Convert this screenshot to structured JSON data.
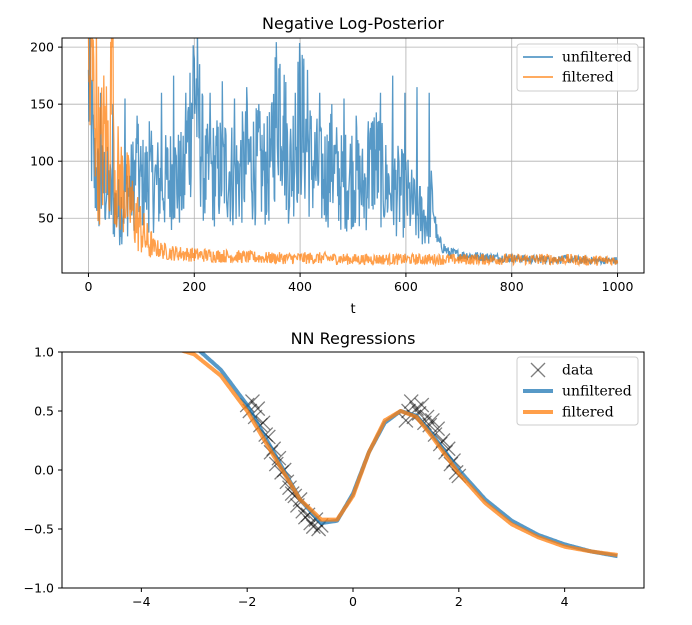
{
  "chart_data": [
    {
      "type": "line",
      "title": "Negative Log-Posterior",
      "xlabel": "t",
      "ylabel": "",
      "xlim": [
        -50,
        1050
      ],
      "ylim": [
        2,
        208
      ],
      "grid": true,
      "xticks": [
        0,
        200,
        400,
        600,
        800,
        1000
      ],
      "xtick_labels": [
        "0",
        "200",
        "400",
        "600",
        "800",
        "1000"
      ],
      "yticks": [
        50,
        100,
        150,
        200
      ],
      "ytick_labels": [
        "50",
        "100",
        "150",
        "200"
      ],
      "legend_position": "top-right",
      "series": [
        {
          "name": "unfiltered",
          "color": "#1f77b4",
          "x": [
            0,
            10,
            20,
            30,
            40,
            50,
            60,
            70,
            80,
            90,
            100,
            120,
            140,
            160,
            180,
            200,
            220,
            240,
            260,
            280,
            300,
            320,
            340,
            360,
            380,
            400,
            420,
            440,
            460,
            480,
            500,
            520,
            540,
            560,
            580,
            600,
            620,
            640,
            650,
            660,
            680,
            700,
            750,
            800,
            850,
            900,
            950,
            1000
          ],
          "values": [
            180,
            95,
            75,
            80,
            70,
            60,
            55,
            70,
            75,
            90,
            80,
            82,
            78,
            88,
            80,
            175,
            85,
            90,
            95,
            85,
            100,
            95,
            90,
            165,
            90,
            140,
            100,
            85,
            95,
            80,
            90,
            75,
            105,
            80,
            75,
            70,
            55,
            50,
            65,
            30,
            20,
            18,
            16,
            15,
            14,
            14,
            13,
            13
          ],
          "peak_values": [
            180,
            160,
            150,
            155,
            140,
            135,
            160,
            175,
            160,
            165,
            160,
            170,
            155,
            165,
            150,
            100,
            140,
            160
          ]
        },
        {
          "name": "filtered",
          "color": "#ff7f0e",
          "x": [
            0,
            10,
            20,
            30,
            40,
            45,
            50,
            60,
            70,
            80,
            90,
            100,
            110,
            120,
            150,
            200,
            250,
            300,
            350,
            400,
            450,
            500,
            550,
            600,
            650,
            700,
            750,
            800,
            850,
            900,
            950,
            1000
          ],
          "values": [
            155,
            190,
            100,
            120,
            110,
            200,
            90,
            80,
            75,
            60,
            50,
            40,
            30,
            25,
            20,
            18,
            17,
            16,
            15,
            15,
            15,
            14,
            14,
            14,
            14,
            14,
            14,
            14,
            14,
            14,
            13,
            13
          ]
        }
      ]
    },
    {
      "type": "line",
      "title": "NN Regressions",
      "xlabel": "",
      "ylabel": "",
      "xlim": [
        -5.5,
        5.5
      ],
      "ylim": [
        -1.0,
        1.0
      ],
      "grid": false,
      "xticks": [
        -4,
        -2,
        0,
        2,
        4
      ],
      "xtick_labels": [
        "−4",
        "−2",
        "0",
        "2",
        "4"
      ],
      "yticks": [
        -1.0,
        -0.5,
        0.0,
        0.5,
        1.0
      ],
      "ytick_labels": [
        "−1.0",
        "−0.5",
        "0.0",
        "0.5",
        "1.0"
      ],
      "legend_position": "top-right",
      "series": [
        {
          "name": "data",
          "style": "x-markers",
          "color": "#000000",
          "x": [
            -2.0,
            -1.95,
            -1.9,
            -1.85,
            -1.8,
            -1.75,
            -1.7,
            -1.65,
            -1.6,
            -1.55,
            -1.5,
            -1.45,
            -1.4,
            -1.35,
            -1.3,
            -1.25,
            -1.2,
            -1.15,
            -1.1,
            -1.05,
            -1.0,
            -0.95,
            -0.9,
            -0.85,
            -0.8,
            -0.75,
            -0.7,
            -0.65,
            -0.6,
            1.0,
            1.05,
            1.1,
            1.15,
            1.2,
            1.25,
            1.3,
            1.35,
            1.4,
            1.45,
            1.5,
            1.55,
            1.6,
            1.65,
            1.7,
            1.75,
            1.8,
            1.85,
            1.9,
            1.95,
            2.0
          ],
          "values": [
            0.55,
            0.5,
            0.58,
            0.45,
            0.52,
            0.38,
            0.4,
            0.3,
            0.28,
            0.15,
            0.18,
            0.05,
            0.1,
            -0.02,
            0.0,
            -0.1,
            -0.15,
            -0.2,
            -0.22,
            -0.3,
            -0.25,
            -0.35,
            -0.4,
            -0.38,
            -0.45,
            -0.48,
            -0.42,
            -0.5,
            -0.47,
            0.42,
            0.5,
            0.58,
            0.45,
            0.52,
            0.48,
            0.55,
            0.4,
            0.45,
            0.38,
            0.42,
            0.3,
            0.35,
            0.22,
            0.25,
            0.15,
            0.18,
            0.05,
            0.08,
            -0.02,
            -0.05
          ]
        },
        {
          "name": "unfiltered",
          "color": "#1f77b4",
          "x": [
            -3.0,
            -2.5,
            -2.0,
            -1.5,
            -1.0,
            -0.6,
            -0.3,
            0.0,
            0.3,
            0.6,
            0.9,
            1.2,
            1.5,
            2.0,
            2.5,
            3.0,
            3.5,
            4.0,
            4.5,
            5.0
          ],
          "values": [
            1.05,
            0.85,
            0.55,
            0.15,
            -0.25,
            -0.45,
            -0.43,
            -0.2,
            0.15,
            0.4,
            0.5,
            0.46,
            0.3,
            0.0,
            -0.25,
            -0.43,
            -0.55,
            -0.63,
            -0.69,
            -0.73
          ]
        },
        {
          "name": "filtered",
          "color": "#ff7f0e",
          "x": [
            -3.5,
            -3.0,
            -2.5,
            -2.0,
            -1.5,
            -1.0,
            -0.6,
            -0.3,
            0.0,
            0.3,
            0.6,
            0.9,
            1.2,
            1.5,
            2.0,
            2.5,
            3.0,
            3.5,
            4.0,
            4.5,
            5.0
          ],
          "values": [
            1.05,
            0.98,
            0.8,
            0.5,
            0.12,
            -0.25,
            -0.42,
            -0.42,
            -0.22,
            0.15,
            0.42,
            0.5,
            0.45,
            0.28,
            -0.03,
            -0.28,
            -0.46,
            -0.57,
            -0.65,
            -0.69,
            -0.72
          ]
        }
      ]
    }
  ]
}
